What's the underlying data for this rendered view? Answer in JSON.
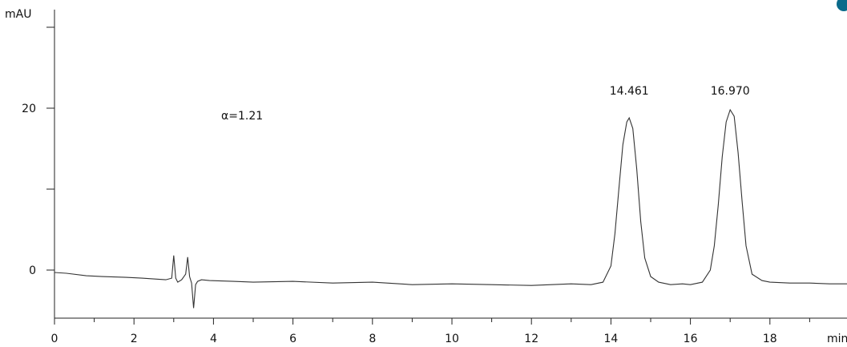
{
  "chart_data": {
    "type": "line",
    "title": "",
    "xlabel": "min",
    "ylabel": "mAU",
    "xlim": [
      0,
      20
    ],
    "ylim": [
      -6,
      30
    ],
    "x_ticks": [
      0,
      2,
      4,
      6,
      8,
      10,
      12,
      14,
      16,
      18
    ],
    "x_tick_labels": [
      "0",
      "2",
      "4",
      "6",
      "8",
      "10",
      "12",
      "14",
      "16",
      "18"
    ],
    "y_ticks": [
      0,
      20
    ],
    "y_tick_labels": [
      "0",
      "20"
    ],
    "y_minor_ticks": [
      10,
      30
    ],
    "grid": false,
    "annotation": "α=1.21",
    "peaks": [
      {
        "label": "14.461",
        "x": 14.46,
        "height": 18.8
      },
      {
        "label": "16.970",
        "x": 17.0,
        "height": 19.8
      }
    ],
    "series": [
      {
        "x": [
          0.0,
          0.3,
          0.8,
          1.2,
          1.8,
          2.2,
          2.5,
          2.8,
          2.95,
          3.0,
          3.05,
          3.1,
          3.2,
          3.3,
          3.35,
          3.4,
          3.45,
          3.5,
          3.55,
          3.6,
          3.7,
          3.9,
          4.5,
          5.0,
          6.0,
          7.0,
          8.0,
          9.0,
          10.0,
          11.0,
          12.0,
          12.5,
          13.0,
          13.5,
          13.8,
          14.0,
          14.1,
          14.2,
          14.3,
          14.4,
          14.46,
          14.55,
          14.65,
          14.75,
          14.85,
          15.0,
          15.2,
          15.5,
          15.8,
          16.0,
          16.3,
          16.5,
          16.6,
          16.7,
          16.8,
          16.9,
          17.0,
          17.1,
          17.2,
          17.3,
          17.4,
          17.55,
          17.8,
          18.0,
          18.5,
          19.0,
          19.5,
          20.0
        ],
        "y": [
          -0.3,
          -0.4,
          -0.7,
          -0.8,
          -0.9,
          -1.0,
          -1.1,
          -1.2,
          -1.0,
          1.8,
          -1.0,
          -1.5,
          -1.2,
          -0.5,
          1.6,
          -0.8,
          -1.6,
          -4.7,
          -1.8,
          -1.4,
          -1.2,
          -1.3,
          -1.4,
          -1.5,
          -1.4,
          -1.6,
          -1.5,
          -1.8,
          -1.7,
          -1.8,
          -1.9,
          -1.8,
          -1.7,
          -1.8,
          -1.5,
          0.5,
          4.5,
          10.0,
          15.5,
          18.3,
          18.8,
          17.5,
          12.5,
          6.0,
          1.5,
          -0.8,
          -1.5,
          -1.8,
          -1.7,
          -1.8,
          -1.5,
          0.0,
          3.0,
          8.0,
          14.0,
          18.3,
          19.8,
          19.0,
          14.5,
          8.5,
          3.0,
          -0.5,
          -1.3,
          -1.5,
          -1.6,
          -1.6,
          -1.7,
          -1.7
        ]
      }
    ]
  }
}
